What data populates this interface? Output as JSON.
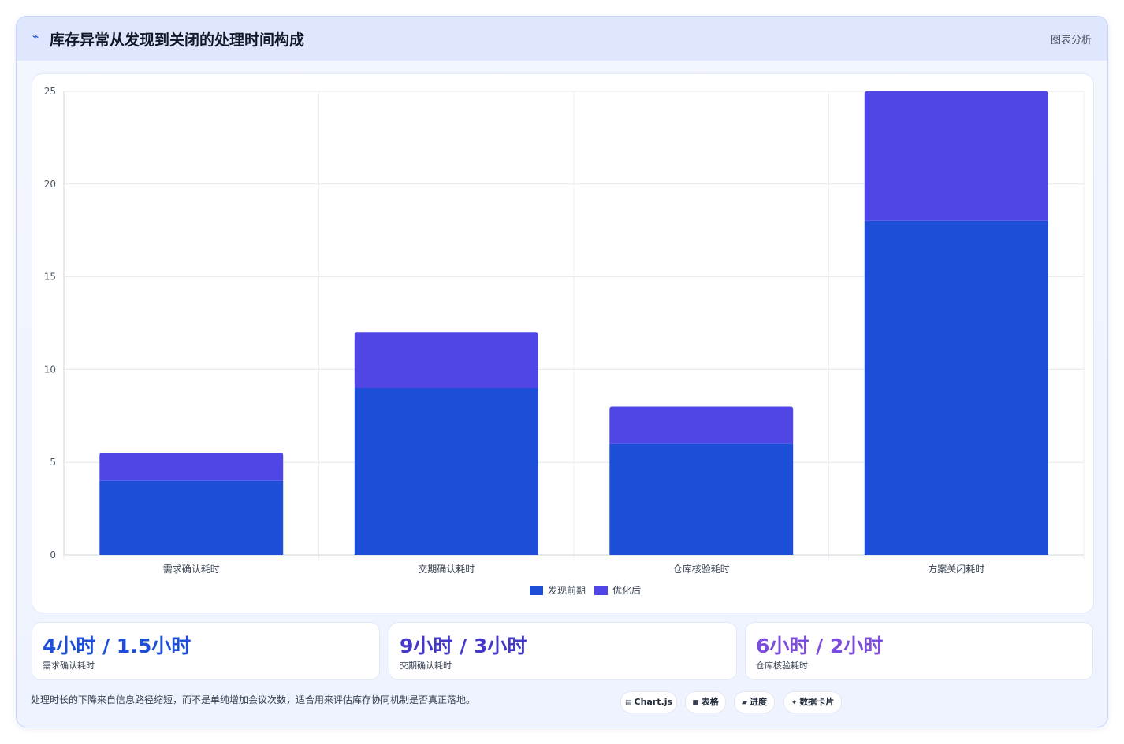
{
  "header": {
    "icon": "trend-line-icon",
    "title": "库存异常从发现到关闭的处理时间构成",
    "tag": "图表分析"
  },
  "chart_data": {
    "type": "bar",
    "stacked": true,
    "categories": [
      "需求确认耗时",
      "交期确认耗时",
      "仓库核验耗时",
      "方案关闭耗时"
    ],
    "series": [
      {
        "name": "发现前期",
        "values": [
          4,
          9,
          6,
          18
        ],
        "color": "#1d4ed8"
      },
      {
        "name": "优化后",
        "values": [
          1.5,
          3,
          2,
          7
        ],
        "color": "#4f46e5"
      }
    ],
    "ylim": [
      0,
      25
    ],
    "yticks": [
      0,
      5,
      10,
      15,
      20,
      25
    ],
    "grid": true,
    "legend": "bottom-center"
  },
  "stats": [
    {
      "value": "4小时 / 1.5小时",
      "label": "需求确认耗时",
      "color": "#1d4ed8"
    },
    {
      "value": "9小时 / 3小时",
      "label": "交期确认耗时",
      "color": "#4338ca"
    },
    {
      "value": "6小时 / 2小时",
      "label": "仓库核验耗时",
      "color": "#7c4ddb"
    }
  ],
  "footnote": "处理时长的下降来自信息路径缩短，而不是单纯增加会议次数，适合用来评估库存协同机制是否真正落地。",
  "chips": [
    {
      "icon": "chart-icon",
      "glyph": "▤",
      "label": "Chart.js"
    },
    {
      "icon": "table-icon",
      "glyph": "■",
      "label": "表格"
    },
    {
      "icon": "progress-icon",
      "glyph": "▰",
      "label": "进度"
    },
    {
      "icon": "card-icon",
      "glyph": "✦",
      "label": "数据卡片"
    }
  ]
}
